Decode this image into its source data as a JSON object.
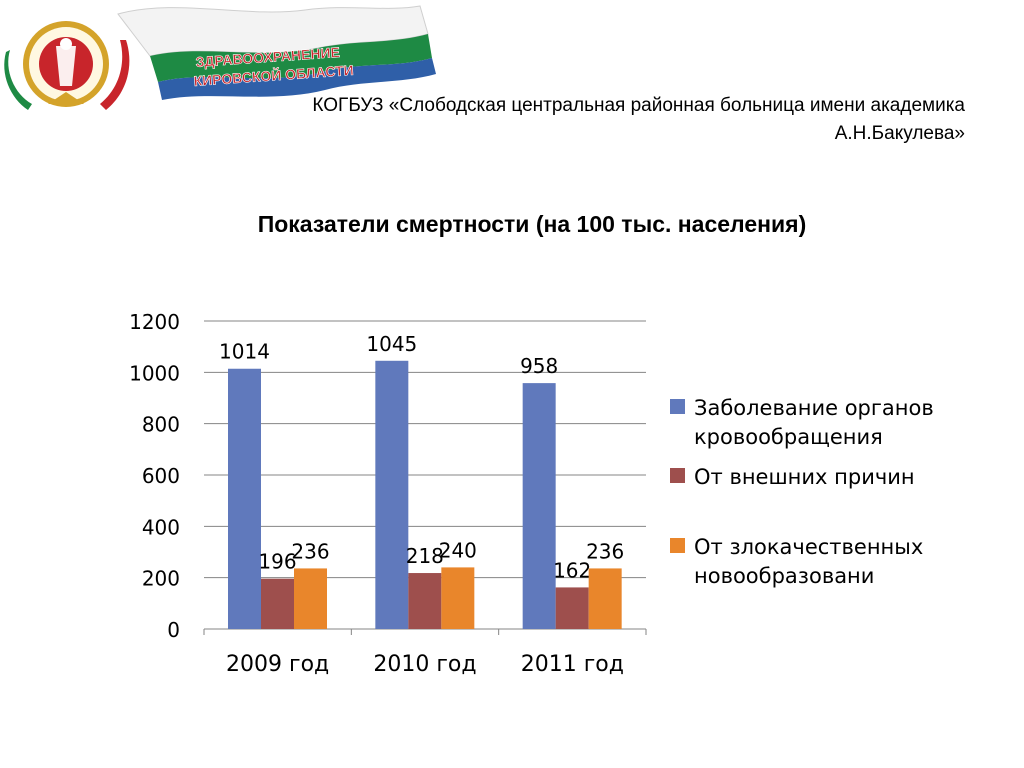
{
  "header": {
    "logo_text_line1": "ЗДРАВООХРАНЕНИЕ",
    "logo_text_line2": "КИРОВСКОЙ ОБЛАСТИ",
    "org_line1": "КОГБУЗ «Слободская центральная районная больница имени академика",
    "org_line2": "А.Н.Бакулева»"
  },
  "title": "Показатели смертности (на 100 тыс. населения)",
  "colors": {
    "series1": "#6079BC",
    "series2": "#9E4F4D",
    "series3": "#E9862B",
    "grid": "#858585",
    "banner_green": "#1E8A44",
    "banner_blue": "#2F5FA8",
    "logo_red": "#C8252B",
    "logo_gold": "#D4A32A"
  },
  "chart_data": {
    "type": "bar",
    "categories": [
      "2009 год",
      "2010 год",
      "2011 год"
    ],
    "series": [
      {
        "name": "Заболевание органов кровообращения",
        "values": [
          1014,
          1045,
          958
        ]
      },
      {
        "name": "От внешних причин",
        "values": [
          196,
          218,
          162
        ]
      },
      {
        "name": "От злокачественных новообразовани",
        "values": [
          236,
          240,
          236
        ]
      }
    ],
    "yticks": [
      "0",
      "200",
      "400",
      "600",
      "800",
      "1000",
      "1200"
    ],
    "ylim": [
      0,
      1200
    ],
    "grid": true,
    "legend_position": "right"
  }
}
